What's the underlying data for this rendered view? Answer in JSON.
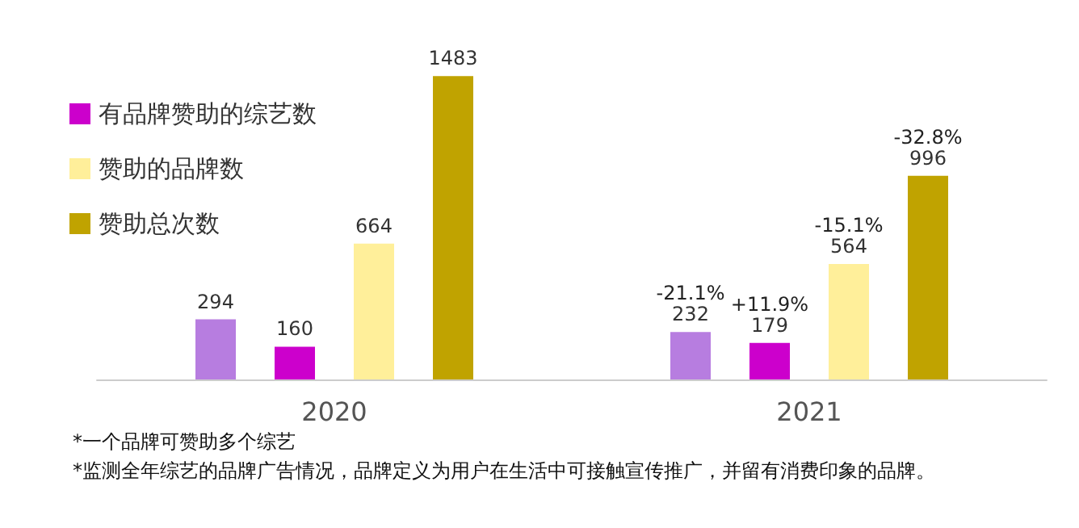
{
  "chart_data": {
    "type": "bar",
    "categories": [
      "2020",
      "2021"
    ],
    "series": [
      {
        "color": "#b77de0",
        "values": [
          294,
          232
        ]
      },
      {
        "name": "有品牌赞助的综艺数",
        "color": "#cc00cc",
        "values": [
          160,
          179
        ]
      },
      {
        "name": "赞助的品牌数",
        "color": "#ffef9a",
        "values": [
          664,
          564
        ]
      },
      {
        "name": "赞助总次数",
        "color": "#c0a300",
        "values": [
          1483,
          996
        ]
      }
    ],
    "data_labels": true,
    "legend": "top left",
    "grid": false,
    "annotations": [
      "-21.1%",
      "+11.9%",
      "-15.1%",
      "-32.8%",
      "*一个品牌可赞助多个综艺",
      "*监测全年综艺的品牌广告情况，品牌定义为用户在生活中可接触宣传推广，并留有消费印象的品牌。"
    ]
  }
}
